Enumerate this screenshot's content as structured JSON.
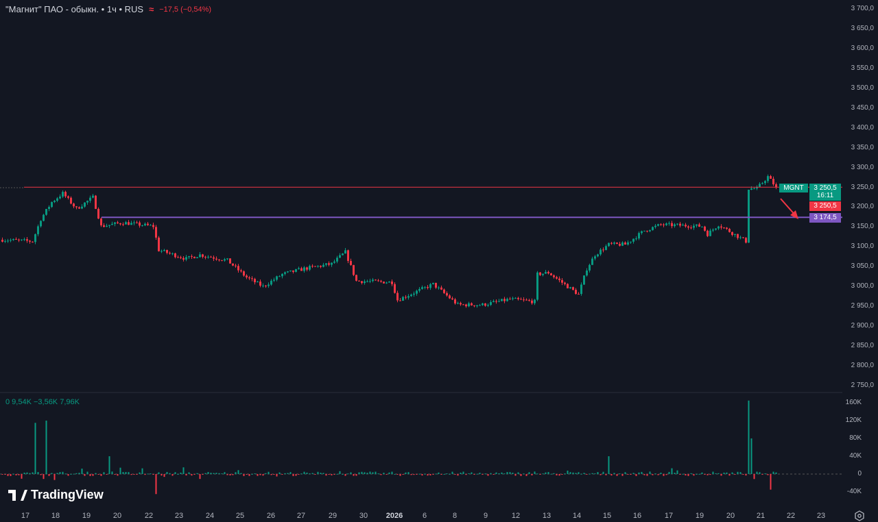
{
  "header": {
    "title": "\"Магнит\" ПАО - обыкн. • 1ч • RUS",
    "indicator_icon": "equals-icon",
    "change": "−17,5 (−0,54%)"
  },
  "volume_legend": "0  9,54K  −3,56K  7,96K",
  "logo_text": "TradingView",
  "price_tags": {
    "symbol": "MGNT",
    "last_price": "3 250,5",
    "countdown": "16:11",
    "bid_price": "3 250,5",
    "level_price": "3 174,5"
  },
  "colors": {
    "up": "#089981",
    "down": "#f23645",
    "resistance": "#f23645",
    "support": "#7e57c2",
    "bg": "#131722"
  },
  "price_axis": [
    "3 700,0",
    "3 650,0",
    "3 600,0",
    "3 550,0",
    "3 500,0",
    "3 450,0",
    "3 400,0",
    "3 350,0",
    "3 300,0",
    "3 250,0",
    "3 200,0",
    "3 150,0",
    "3 100,0",
    "3 050,0",
    "3 000,0",
    "2 950,0",
    "2 900,0",
    "2 850,0",
    "2 800,0",
    "2 750,0"
  ],
  "volume_axis": [
    "160K",
    "120K",
    "80K",
    "40K",
    "0",
    "-40K"
  ],
  "time_axis": [
    {
      "label": "17"
    },
    {
      "label": "18"
    },
    {
      "label": "19"
    },
    {
      "label": "20"
    },
    {
      "label": "22"
    },
    {
      "label": "23"
    },
    {
      "label": "24"
    },
    {
      "label": "25"
    },
    {
      "label": "26"
    },
    {
      "label": "27"
    },
    {
      "label": "29"
    },
    {
      "label": "30"
    },
    {
      "label": "2026",
      "bold": true
    },
    {
      "label": "6"
    },
    {
      "label": "8"
    },
    {
      "label": "9"
    },
    {
      "label": "12"
    },
    {
      "label": "13"
    },
    {
      "label": "14"
    },
    {
      "label": "15"
    },
    {
      "label": "16"
    },
    {
      "label": "17"
    },
    {
      "label": "19"
    },
    {
      "label": "20"
    },
    {
      "label": "21"
    },
    {
      "label": "22"
    },
    {
      "label": "23"
    }
  ],
  "chart_data": {
    "type": "candlestick",
    "symbol": "MGNT",
    "interval": "1h",
    "ylim": [
      2750,
      3700
    ],
    "volume_ylim": [
      -50,
      170
    ],
    "close_waypoints": [
      [
        0,
        3118
      ],
      [
        11,
        3114
      ],
      [
        14,
        3170
      ],
      [
        18,
        3213
      ],
      [
        22,
        3235
      ],
      [
        27,
        3196
      ],
      [
        33,
        3225
      ],
      [
        36,
        3152
      ],
      [
        44,
        3161
      ],
      [
        55,
        3152
      ],
      [
        57,
        3092
      ],
      [
        67,
        3070
      ],
      [
        72,
        3080
      ],
      [
        82,
        3066
      ],
      [
        89,
        3023
      ],
      [
        95,
        3000
      ],
      [
        102,
        3031
      ],
      [
        110,
        3045
      ],
      [
        120,
        3057
      ],
      [
        125,
        3087
      ],
      [
        129,
        3014
      ],
      [
        142,
        3011
      ],
      [
        144,
        2966
      ],
      [
        157,
        3006
      ],
      [
        166,
        2954
      ],
      [
        175,
        2954
      ],
      [
        185,
        2968
      ],
      [
        194,
        2962
      ],
      [
        195,
        3031
      ],
      [
        199,
        3035
      ],
      [
        210,
        2980
      ],
      [
        213,
        3045
      ],
      [
        216,
        3080
      ],
      [
        221,
        3106
      ],
      [
        227,
        3106
      ],
      [
        234,
        3141
      ],
      [
        240,
        3156
      ],
      [
        255,
        3152
      ],
      [
        257,
        3132
      ],
      [
        261,
        3156
      ],
      [
        266,
        3135
      ],
      [
        271,
        3114
      ],
      [
        272,
        3247
      ],
      [
        275,
        3247
      ],
      [
        279,
        3277
      ],
      [
        282,
        3250.5
      ]
    ],
    "volume_spikes_K": [
      [
        12,
        115
      ],
      [
        16,
        120
      ],
      [
        39,
        40
      ],
      [
        56,
        -45
      ],
      [
        221,
        40
      ],
      [
        272,
        165
      ],
      [
        273,
        80
      ],
      [
        280,
        -35
      ]
    ],
    "levels": [
      {
        "price": 3250.5,
        "color": "red"
      },
      {
        "price": 3174.5,
        "color": "purple"
      }
    ],
    "annotation": "arrow down from 3250 toward 3174.5"
  }
}
